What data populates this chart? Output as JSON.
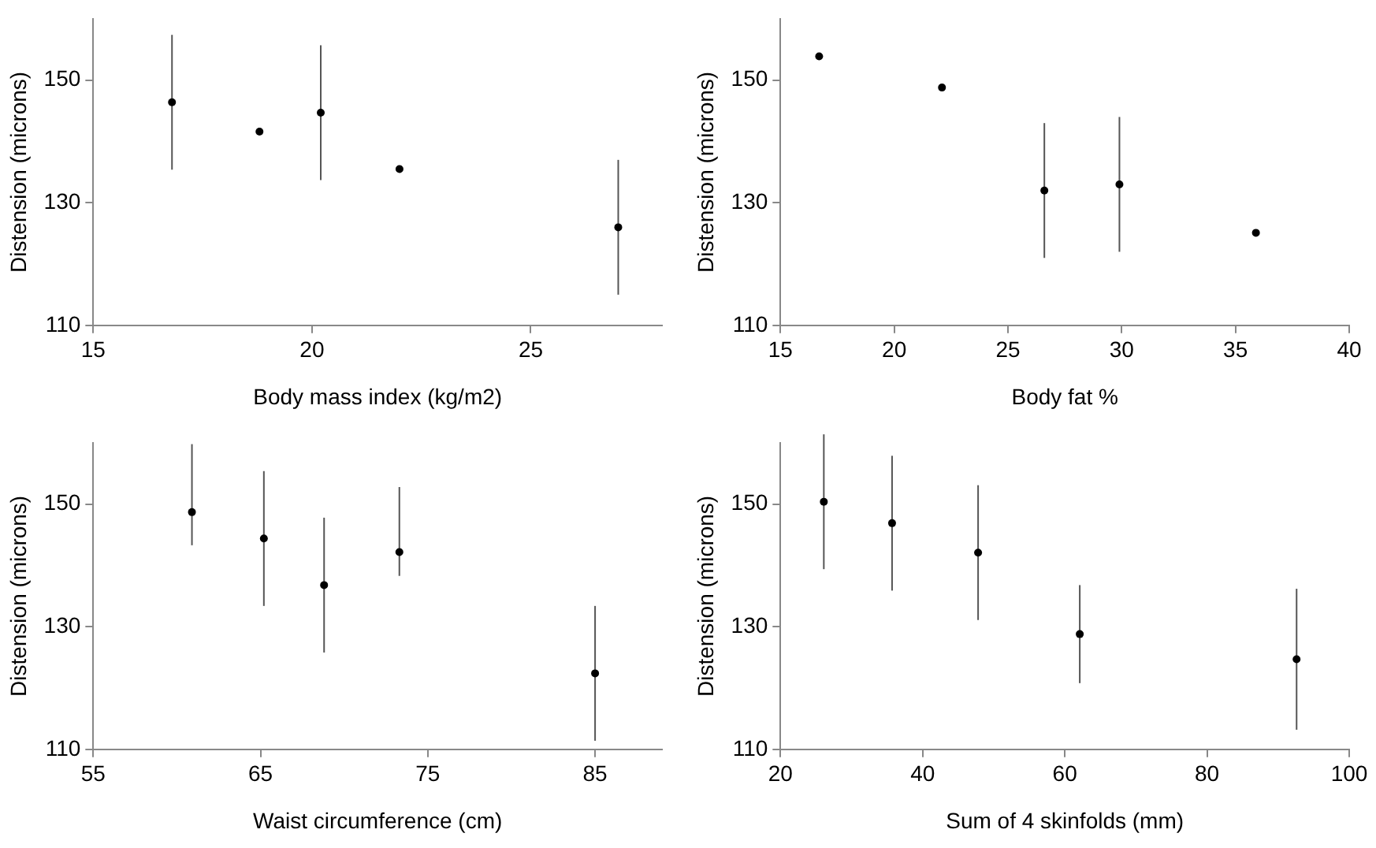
{
  "chart_data": [
    {
      "type": "scatter",
      "xlabel": "Body mass index (kg/m2)",
      "ylabel": "Distension (microns)",
      "x": [
        16.8,
        18.8,
        20.2,
        22.0,
        27.0
      ],
      "values": [
        146.4,
        141.6,
        144.7,
        135.5,
        126.0
      ],
      "errors": [
        11,
        null,
        11,
        null,
        11
      ],
      "color": "#000000",
      "marker": "circle",
      "xlim": [
        15,
        28
      ],
      "xticks": [
        15,
        20,
        25
      ],
      "ylim": [
        110,
        160
      ],
      "yticks": [
        110,
        130,
        150
      ],
      "grid": false,
      "legend": false
    },
    {
      "type": "scatter",
      "xlabel": "Body fat %",
      "ylabel": "Distension (microns)",
      "x": [
        16.7,
        22.1,
        26.6,
        29.9,
        35.9
      ],
      "values": [
        153.9,
        148.8,
        132.0,
        133.0,
        125.1
      ],
      "errors": [
        null,
        null,
        11,
        11,
        null
      ],
      "color": "#000000",
      "marker": "circle",
      "xlim": [
        15,
        40
      ],
      "xticks": [
        15,
        20,
        25,
        30,
        35,
        40
      ],
      "ylim": [
        110,
        160
      ],
      "yticks": [
        110,
        130,
        150
      ],
      "grid": false,
      "legend": false
    },
    {
      "type": "scatter",
      "xlabel": "Waist circumference (cm)",
      "ylabel": "Distension (microns)",
      "x": [
        60.9,
        65.2,
        68.8,
        73.3,
        85.0
      ],
      "values": [
        148.7,
        144.4,
        136.8,
        142.2,
        122.4
      ],
      "errors": [
        [
          143.3,
          159.8
        ],
        11,
        11,
        [
          138.3,
          152.8
        ],
        11
      ],
      "color": "#000000",
      "marker": "circle",
      "xlim": [
        55,
        89
      ],
      "xticks": [
        55,
        65,
        75,
        85
      ],
      "ylim": [
        110,
        160
      ],
      "yticks": [
        110,
        130,
        150
      ],
      "grid": false,
      "legend": false
    },
    {
      "type": "scatter",
      "xlabel": "Sum of 4 skinfolds (mm)",
      "ylabel": "Distension (microns)",
      "x": [
        26.1,
        35.7,
        47.8,
        62.1,
        92.6
      ],
      "values": [
        150.4,
        146.9,
        142.1,
        128.8,
        124.7
      ],
      "errors": [
        11,
        11,
        11,
        8,
        11.5
      ],
      "color": "#000000",
      "marker": "circle",
      "xlim": [
        20,
        100
      ],
      "xticks": [
        20,
        40,
        60,
        80,
        100
      ],
      "ylim": [
        110,
        160
      ],
      "yticks": [
        110,
        130,
        150
      ],
      "grid": false,
      "legend": false
    }
  ]
}
